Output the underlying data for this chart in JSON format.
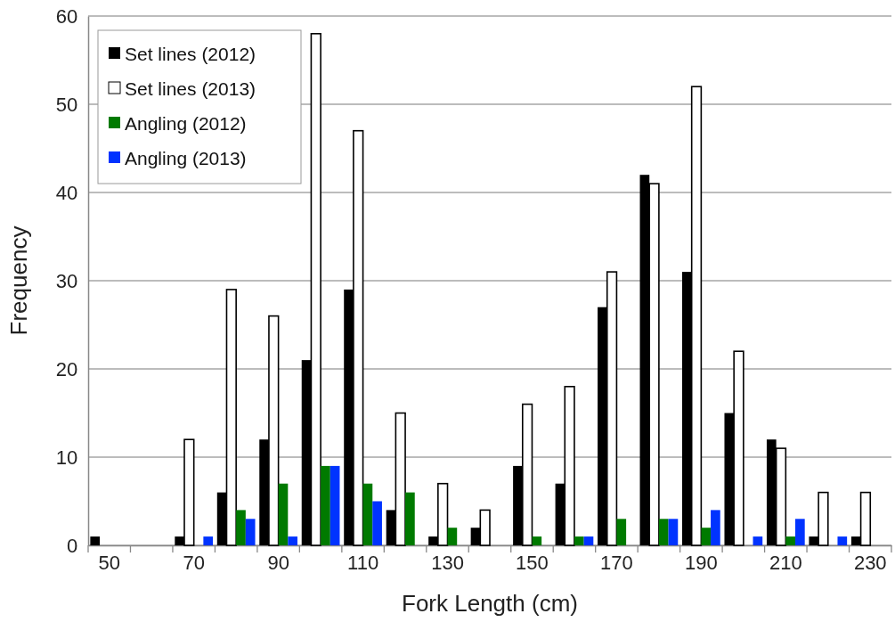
{
  "chart_data": {
    "type": "bar",
    "xlabel": "Fork Length (cm)",
    "ylabel": "Frequency",
    "categories": [
      "50",
      null,
      "70",
      null,
      "90",
      null,
      "110",
      null,
      "130",
      null,
      "150",
      null,
      "170",
      null,
      "190",
      null,
      "210",
      null,
      "230"
    ],
    "series": [
      {
        "name": "Set lines (2012)",
        "color": "#000000",
        "values": [
          1,
          0,
          1,
          6,
          12,
          21,
          29,
          4,
          1,
          2,
          9,
          7,
          27,
          42,
          31,
          15,
          12,
          1,
          1
        ]
      },
      {
        "name": "Set lines (2013)",
        "color": "#ffffff",
        "values": [
          0,
          0,
          12,
          29,
          26,
          58,
          47,
          15,
          7,
          4,
          16,
          18,
          31,
          41,
          52,
          22,
          11,
          6,
          6
        ]
      },
      {
        "name": "Angling (2012)",
        "color": "#007a00",
        "values": [
          0,
          0,
          0,
          4,
          7,
          9,
          7,
          6,
          2,
          0,
          1,
          1,
          3,
          3,
          2,
          0,
          1,
          0,
          0
        ]
      },
      {
        "name": "Angling (2013)",
        "color": "#0033ff",
        "values": [
          0,
          0,
          1,
          3,
          1,
          9,
          5,
          0,
          0,
          0,
          0,
          1,
          0,
          3,
          4,
          1,
          3,
          1,
          0
        ]
      }
    ],
    "ylim": [
      0,
      60
    ],
    "yticks": [
      0,
      10,
      20,
      30,
      40,
      50,
      60
    ],
    "grid": "y",
    "legend": "top left"
  }
}
